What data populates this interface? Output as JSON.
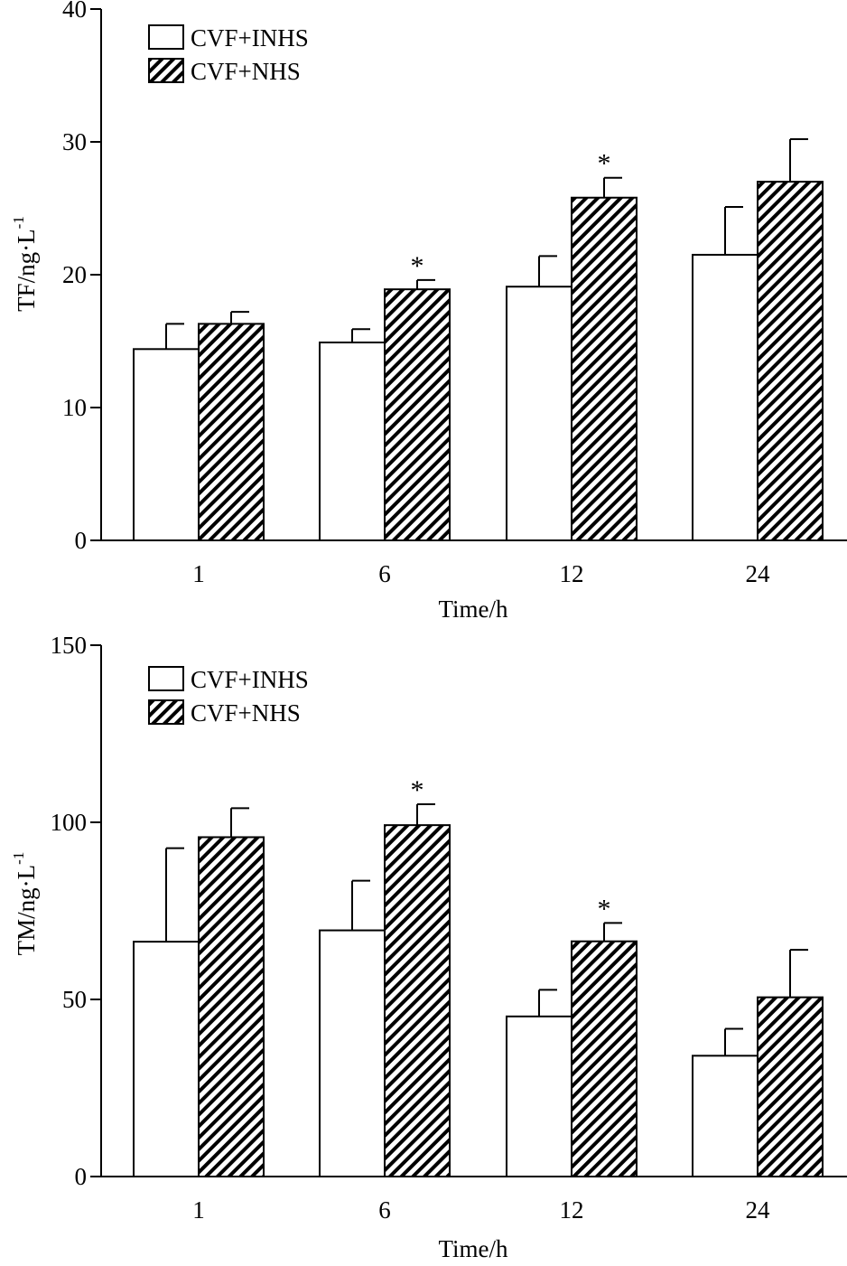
{
  "chart_data": [
    {
      "type": "bar",
      "categories": [
        "1",
        "6",
        "12",
        "24"
      ],
      "xlabel": "Time/h",
      "ylabel": "TF/ng·L",
      "ylabel_superscript": "-1",
      "ylim": [
        0,
        40
      ],
      "yticks": [
        "0",
        "10",
        "20",
        "30",
        "40"
      ],
      "legend_position": "top-left",
      "series": [
        {
          "name": "CVF+INHS",
          "fill": "open",
          "values": [
            14.4,
            14.9,
            19.1,
            21.5
          ],
          "errors": [
            1.9,
            1.0,
            2.3,
            3.6
          ]
        },
        {
          "name": "CVF+NHS",
          "fill": "hatched",
          "values": [
            16.3,
            18.9,
            25.8,
            27.0
          ],
          "errors": [
            0.9,
            0.7,
            1.5,
            3.2
          ]
        }
      ],
      "annotations": [
        {
          "category": "6",
          "series": "CVF+NHS",
          "text": "*"
        },
        {
          "category": "12",
          "series": "CVF+NHS",
          "text": "*"
        }
      ]
    },
    {
      "type": "bar",
      "categories": [
        "1",
        "6",
        "12",
        "24"
      ],
      "xlabel": "Time/h",
      "ylabel": "TM/ng·L",
      "ylabel_superscript": "-1",
      "ylim": [
        0,
        150
      ],
      "yticks": [
        "0",
        "50",
        "100",
        "150"
      ],
      "legend_position": "top-left",
      "series": [
        {
          "name": "CVF+INHS",
          "fill": "open",
          "values": [
            66.3,
            69.5,
            45.2,
            34.1
          ],
          "errors": [
            26.4,
            14.0,
            7.5,
            7.6
          ]
        },
        {
          "name": "CVF+NHS",
          "fill": "hatched",
          "values": [
            95.8,
            99.2,
            66.4,
            50.6
          ],
          "errors": [
            8.2,
            5.9,
            5.2,
            13.4
          ]
        }
      ],
      "annotations": [
        {
          "category": "6",
          "series": "CVF+NHS",
          "text": "*"
        },
        {
          "category": "12",
          "series": "CVF+NHS",
          "text": "*"
        }
      ]
    }
  ]
}
